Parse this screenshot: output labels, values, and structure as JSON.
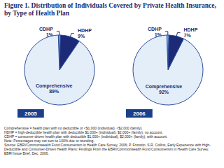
{
  "title": "Figure 1. Distribution of Individuals Covered by Private Health Insurance, by Type of Health Plan",
  "chart_data": [
    {
      "type": "pie",
      "title": "2005",
      "categories": [
        "CDHP",
        "HDHP",
        "Comprehensive"
      ],
      "values": [
        1,
        9,
        89
      ],
      "value_labels": [
        "1%",
        "9%",
        "89%"
      ],
      "colors": [
        "#6fa8dc",
        "#1c2a78",
        "#e3eef9"
      ],
      "data_labels": true
    },
    {
      "type": "pie",
      "title": "2006",
      "categories": [
        "CDHP",
        "HDHP",
        "Comprehensive"
      ],
      "values": [
        1,
        7,
        92
      ],
      "value_labels": [
        "1%",
        "7%",
        "92%"
      ],
      "colors": [
        "#6fa8dc",
        "#1c2a78",
        "#e3eef9"
      ],
      "data_labels": true
    }
  ],
  "notes": [
    "Comprehensive = health plan with no deductible or <$1,000 (individual), <$2,000 (family).",
    "HDHP = high-deductible health plan with deductible $1,000+ (individual), $2,000+ (family), no account.",
    "CDHP = consumer-driven health plan with deductible $1,000+ (individual), $2,000+ (family), with account.",
    "Note: Percentages may not sum to 100% due to rounding."
  ],
  "source": "Source: EBRI/Commonwealth Fund Consumerism in Health Care Survey, 2006; P. Fronstin, S.R. Collins, Early Experience with High-Deductible and Consumer-Driven Health Plans: Findings From the EBRI/Commonwealth Fund Consumerism in Health Care Survey, EBRI Issue Brief, Dec. 2006."
}
